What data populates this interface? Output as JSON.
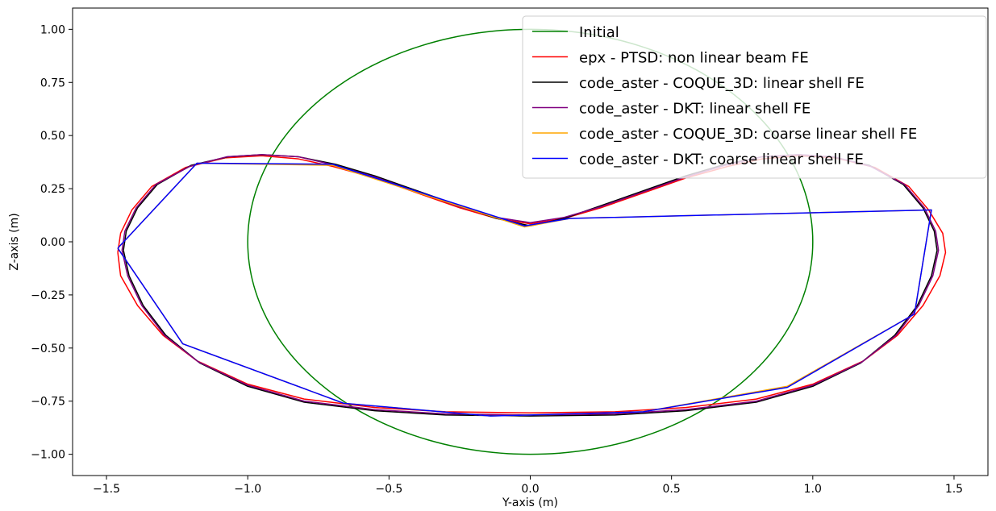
{
  "chart_data": {
    "type": "line",
    "title": "",
    "xlabel": "Y-axis (m)",
    "ylabel": "Z-axis (m)",
    "xlim": [
      -1.62,
      1.62
    ],
    "ylim": [
      -1.1,
      1.1
    ],
    "xticks": [
      -1.5,
      -1.0,
      -0.5,
      0.0,
      0.5,
      1.0,
      1.5
    ],
    "xtick_labels": [
      "−1.5",
      "−1.0",
      "−0.5",
      "0.0",
      "0.5",
      "1.0",
      "1.5"
    ],
    "yticks": [
      1.0,
      0.75,
      0.5,
      0.25,
      0.0,
      -0.25,
      -0.5,
      -0.75,
      -1.0
    ],
    "ytick_labels": [
      "1.00",
      "0.75",
      "0.50",
      "0.25",
      "0.00",
      "−0.25",
      "−0.50",
      "−0.75",
      "−1.00"
    ],
    "grid": false,
    "legend_position": "top-right",
    "series": [
      {
        "name": "Initial",
        "color": "#008000",
        "kind": "circle",
        "center": [
          0.0,
          0.0
        ],
        "radius": 1.0
      },
      {
        "name": "epx - PTSD: non linear beam FE",
        "color": "#ff0000",
        "x": [
          -1.46,
          -1.45,
          -1.41,
          -1.34,
          -1.22,
          -1.08,
          -0.95,
          -0.82,
          -0.7,
          -0.55,
          -0.4,
          -0.25,
          -0.12,
          0.0,
          0.12,
          0.25,
          0.4,
          0.55,
          0.7,
          0.82,
          0.95,
          1.08,
          1.22,
          1.34,
          1.41,
          1.46,
          1.47,
          1.45,
          1.39,
          1.3,
          1.18,
          1.0,
          0.8,
          0.55,
          0.3,
          0.0,
          -0.3,
          -0.55,
          -0.8,
          -1.0,
          -1.18,
          -1.3,
          -1.39,
          -1.45,
          -1.46
        ],
        "y": [
          -0.05,
          0.04,
          0.15,
          0.26,
          0.35,
          0.395,
          0.405,
          0.39,
          0.355,
          0.3,
          0.23,
          0.16,
          0.11,
          0.085,
          0.11,
          0.16,
          0.23,
          0.3,
          0.355,
          0.39,
          0.405,
          0.395,
          0.35,
          0.26,
          0.15,
          0.04,
          -0.05,
          -0.16,
          -0.3,
          -0.44,
          -0.56,
          -0.67,
          -0.74,
          -0.78,
          -0.8,
          -0.805,
          -0.8,
          -0.78,
          -0.74,
          -0.67,
          -0.56,
          -0.44,
          -0.3,
          -0.16,
          -0.05
        ]
      },
      {
        "name": "code_aster - COQUE_3D: linear shell FE",
        "color": "#000000",
        "x": [
          -1.44,
          -1.43,
          -1.39,
          -1.32,
          -1.2,
          -1.07,
          -0.95,
          -0.82,
          -0.69,
          -0.55,
          -0.4,
          -0.25,
          -0.12,
          0.0,
          0.12,
          0.25,
          0.4,
          0.55,
          0.69,
          0.82,
          0.95,
          1.07,
          1.2,
          1.32,
          1.39,
          1.43,
          1.44,
          1.42,
          1.37,
          1.29,
          1.17,
          1.0,
          0.8,
          0.55,
          0.3,
          0.0,
          -0.3,
          -0.55,
          -0.8,
          -1.0,
          -1.17,
          -1.29,
          -1.37,
          -1.42,
          -1.44
        ],
        "y": [
          -0.04,
          0.05,
          0.16,
          0.27,
          0.36,
          0.4,
          0.41,
          0.4,
          0.365,
          0.31,
          0.24,
          0.17,
          0.11,
          0.075,
          0.11,
          0.17,
          0.24,
          0.31,
          0.365,
          0.4,
          0.41,
          0.4,
          0.36,
          0.27,
          0.16,
          0.05,
          -0.04,
          -0.16,
          -0.3,
          -0.44,
          -0.57,
          -0.68,
          -0.755,
          -0.795,
          -0.815,
          -0.82,
          -0.815,
          -0.795,
          -0.755,
          -0.68,
          -0.57,
          -0.44,
          -0.3,
          -0.16,
          -0.04
        ]
      },
      {
        "name": "code_aster - DKT:  linear shell FE",
        "color": "#800080",
        "x": [
          -1.445,
          -1.435,
          -1.395,
          -1.325,
          -1.205,
          -1.075,
          -0.95,
          -0.82,
          -0.69,
          -0.55,
          -0.4,
          -0.25,
          -0.12,
          0.0,
          0.12,
          0.25,
          0.4,
          0.55,
          0.69,
          0.82,
          0.95,
          1.075,
          1.205,
          1.325,
          1.395,
          1.435,
          1.445,
          1.425,
          1.375,
          1.295,
          1.175,
          1.0,
          0.8,
          0.55,
          0.3,
          0.0,
          -0.3,
          -0.55,
          -0.8,
          -1.0,
          -1.175,
          -1.295,
          -1.375,
          -1.425,
          -1.445
        ],
        "y": [
          -0.04,
          0.05,
          0.16,
          0.27,
          0.355,
          0.4,
          0.41,
          0.4,
          0.36,
          0.305,
          0.235,
          0.165,
          0.115,
          0.09,
          0.115,
          0.165,
          0.235,
          0.305,
          0.36,
          0.4,
          0.41,
          0.4,
          0.355,
          0.27,
          0.16,
          0.05,
          -0.04,
          -0.16,
          -0.3,
          -0.44,
          -0.565,
          -0.675,
          -0.75,
          -0.79,
          -0.81,
          -0.815,
          -0.81,
          -0.79,
          -0.75,
          -0.675,
          -0.565,
          -0.44,
          -0.3,
          -0.16,
          -0.04
        ]
      },
      {
        "name": "code_aster - COQUE_3D: coarse linear shell FE",
        "color": "#ffa500",
        "x": [
          -1.46,
          -1.18,
          -0.7,
          -0.02,
          0.14,
          1.42,
          1.36,
          0.91,
          0.4,
          -0.14,
          -0.66,
          -1.23,
          -1.46
        ],
        "y": [
          -0.03,
          0.37,
          0.36,
          0.07,
          0.11,
          0.15,
          -0.34,
          -0.68,
          -0.8,
          -0.82,
          -0.76,
          -0.48,
          -0.03
        ]
      },
      {
        "name": "code_aster - DKT: coarse linear shell FE",
        "color": "#0000ff",
        "x": [
          -1.46,
          -1.18,
          -0.7,
          -0.02,
          0.14,
          1.42,
          1.36,
          0.91,
          0.4,
          -0.14,
          -0.66,
          -1.23,
          -1.46
        ],
        "y": [
          -0.03,
          0.37,
          0.365,
          0.075,
          0.11,
          0.15,
          -0.34,
          -0.685,
          -0.8,
          -0.82,
          -0.76,
          -0.48,
          -0.03
        ]
      }
    ]
  }
}
